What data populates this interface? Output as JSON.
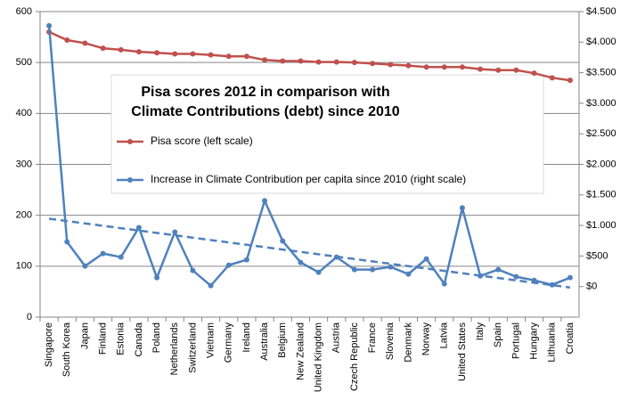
{
  "chart_data": {
    "type": "line",
    "title": [
      "Pisa scores  2012 in comparison with",
      "Climate Contributions (debt) since 2010"
    ],
    "categories": [
      "Singapore",
      "South Korea",
      "Japan",
      "Finland",
      "Estonia",
      "Canada",
      "Poland",
      "Netherlands",
      "Switzerland",
      "Vietnam",
      "Germany",
      "Ireland",
      "Australia",
      "Belgium",
      "New Zealand",
      "United Kingdom",
      "Austria",
      "Czech Republic",
      "France",
      "Slovenia",
      "Denmark",
      "Norway",
      "Latvia",
      "United States",
      "Italy",
      "Spain",
      "Portugal",
      "Hungary",
      "Lithuania",
      "Croatia"
    ],
    "series": [
      {
        "name": "Pisa score (left scale)",
        "color": "#c0504d",
        "axis": "y",
        "values": [
          560,
          544,
          538,
          528,
          525,
          521,
          519,
          517,
          517,
          515,
          512,
          512,
          505,
          503,
          503,
          501,
          501,
          500,
          498,
          496,
          494,
          491,
          491,
          491,
          487,
          485,
          485,
          479,
          470,
          465
        ]
      },
      {
        "name": "Increase in Climate Contribution per capita since 2010 (right scale)",
        "color": "#4f81bd",
        "axis": "y2",
        "values": [
          4269,
          731,
          336,
          541,
          482,
          965,
          146,
          892,
          263,
          15,
          351,
          439,
          1404,
          746,
          395,
          234,
          482,
          278,
          278,
          322,
          205,
          453,
          44,
          1287,
          175,
          278,
          161,
          102,
          29,
          146
        ],
        "trend": [
          1111,
          -15
        ]
      }
    ],
    "ylim": [
      0,
      600
    ],
    "yticks": [
      0,
      100,
      200,
      300,
      400,
      500,
      600
    ],
    "y2lim": [
      -500,
      4500
    ],
    "y2ticks": [
      {
        "value": 0,
        "label": "$0"
      },
      {
        "value": 500,
        "label": "$500"
      },
      {
        "value": 1000,
        "label": "$1.000"
      },
      {
        "value": 1500,
        "label": "$1.500"
      },
      {
        "value": 2000,
        "label": "$2.000"
      },
      {
        "value": 2500,
        "label": "$2.500"
      },
      {
        "value": 3000,
        "label": "$3.000"
      },
      {
        "value": 3500,
        "label": "$3.500"
      },
      {
        "value": 4000,
        "label": "$4.000"
      },
      {
        "value": 4500,
        "label": "$4.500"
      }
    ],
    "grid": true
  }
}
